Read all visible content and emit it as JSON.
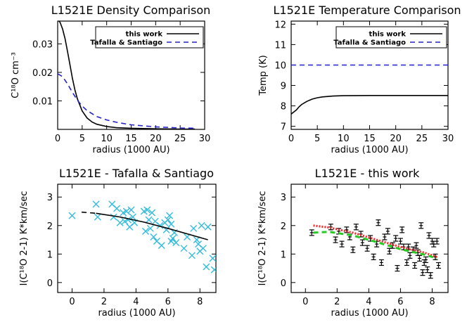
{
  "chart_data": [
    {
      "id": "p1",
      "type": "line",
      "title": "L1521E Density Comparison",
      "xlabel": "radius (1000 AU)",
      "ylabel": "C¹⁸O cm⁻³",
      "xlim": [
        0,
        30
      ],
      "ylim": [
        0,
        0.038
      ],
      "xticks": [
        0,
        5,
        10,
        15,
        20,
        25,
        30
      ],
      "yticks": [
        0.01,
        0.02,
        0.03
      ],
      "ytick_labels": [
        "0.01",
        "0.02",
        "0.03"
      ],
      "legend": "top-right",
      "series": [
        {
          "name": "this work",
          "color": "#000000",
          "dash": "solid",
          "x": [
            0,
            0.5,
            1,
            1.5,
            2,
            2.5,
            3,
            3.5,
            4,
            5,
            6,
            7,
            8,
            10,
            12,
            15,
            20,
            25,
            28
          ],
          "y": [
            0.0385,
            0.0375,
            0.0352,
            0.0318,
            0.0275,
            0.0228,
            0.018,
            0.014,
            0.0108,
            0.0065,
            0.004,
            0.0026,
            0.0018,
            0.001,
            0.0006,
            0.0004,
            0.0002,
            0.0001,
            0.0001
          ]
        },
        {
          "name": "Tafalla & Santiago",
          "color": "#2222cc",
          "dash": "dashed",
          "x": [
            0,
            1,
            2,
            3,
            4,
            5,
            6,
            8,
            10,
            12,
            15,
            20,
            25,
            28
          ],
          "y": [
            0.0195,
            0.0185,
            0.016,
            0.013,
            0.0103,
            0.0082,
            0.0066,
            0.0045,
            0.0033,
            0.0025,
            0.0016,
            0.0009,
            0.0005,
            0.0004
          ]
        }
      ]
    },
    {
      "id": "p2",
      "type": "line",
      "title": "L1521E Temperature Comparison",
      "xlabel": "radius (1000 AU)",
      "ylabel": "Temp (K)",
      "xlim": [
        0,
        30
      ],
      "ylim": [
        6.85,
        12.15
      ],
      "xticks": [
        0,
        5,
        10,
        15,
        20,
        25,
        30
      ],
      "yticks": [
        7,
        8,
        9,
        10,
        11,
        12
      ],
      "ytick_labels": [
        "7",
        "8",
        "9",
        "10",
        "11",
        "12"
      ],
      "legend": "top-right",
      "series": [
        {
          "name": "this work",
          "color": "#000000",
          "dash": "solid",
          "x": [
            0,
            0.5,
            1,
            1.5,
            2,
            3,
            4,
            5,
            6,
            8,
            10,
            15,
            20,
            25,
            30
          ],
          "y": [
            7.6,
            7.7,
            7.8,
            7.95,
            8.07,
            8.22,
            8.33,
            8.4,
            8.44,
            8.48,
            8.5,
            8.51,
            8.51,
            8.51,
            8.51
          ]
        },
        {
          "name": "Tafalla & Santiago",
          "color": "#2222cc",
          "dash": "dashed",
          "x": [
            0,
            30
          ],
          "y": [
            10,
            10
          ]
        }
      ]
    },
    {
      "id": "p3",
      "type": "scatter",
      "title": "L1521E - Tafalla & Santiago",
      "xlabel": "radius (1000 AU)",
      "ylabel": "I(C¹⁸O 2-1) K*km/sec",
      "xlim": [
        -0.9,
        9
      ],
      "ylim": [
        -0.35,
        3.45
      ],
      "xticks": [
        0,
        2,
        4,
        6,
        8
      ],
      "yticks": [
        0,
        1,
        2,
        3
      ],
      "ytick_labels": [
        "0",
        "1",
        "2",
        "3"
      ],
      "series": [
        {
          "name": "",
          "marker": "x",
          "color": "#33bbdd",
          "x": [
            0.0,
            1.5,
            1.6,
            2.5,
            2.6,
            2.8,
            3.0,
            3.2,
            3.3,
            3.4,
            3.5,
            3.6,
            3.7,
            3.8,
            3.9,
            4.5,
            4.6,
            4.7,
            4.8,
            4.9,
            5.0,
            5.1,
            5.2,
            5.3,
            5.5,
            5.6,
            5.8,
            5.9,
            6.0,
            6.1,
            6.2,
            6.2,
            6.3,
            6.4,
            6.5,
            7.0,
            7.2,
            7.5,
            7.6,
            7.8,
            7.9,
            8.0,
            8.1,
            8.2,
            8.4,
            8.5,
            8.8,
            8.9
          ],
          "y": [
            2.35,
            2.75,
            2.3,
            2.75,
            2.3,
            2.6,
            2.1,
            2.45,
            2.15,
            2.5,
            2.2,
            1.95,
            2.55,
            2.3,
            2.1,
            2.5,
            1.8,
            2.55,
            2.2,
            1.9,
            2.45,
            1.6,
            2.15,
            1.45,
            2.0,
            1.3,
            2.1,
            1.85,
            2.2,
            2.35,
            1.45,
            2.05,
            1.55,
            1.75,
            1.4,
            1.2,
            1.6,
            0.95,
            1.9,
            1.5,
            1.35,
            1.1,
            2.0,
            1.2,
            0.55,
            1.95,
            0.85,
            0.45
          ]
        },
        {
          "name": "",
          "color": "#000000",
          "dash": "dashed",
          "x": [
            0.6,
            1.5
          ],
          "y": [
            2.47,
            2.43
          ]
        },
        {
          "name": "",
          "color": "#000000",
          "dash": "solid",
          "x": [
            1.5,
            3,
            4.5,
            6,
            7.5,
            8.5
          ],
          "y": [
            2.43,
            2.3,
            2.12,
            1.9,
            1.66,
            1.5
          ]
        }
      ]
    },
    {
      "id": "p4",
      "type": "scatter",
      "title": "L1521E - this work",
      "xlabel": "radius (1000 AU)",
      "ylabel": "I(C¹⁸O 2-1) K*km/sec",
      "xlim": [
        -0.9,
        9
      ],
      "ylim": [
        -0.35,
        3.45
      ],
      "xticks": [
        0,
        2,
        4,
        6,
        8
      ],
      "yticks": [
        0,
        1,
        2,
        3
      ],
      "ytick_labels": [
        "0",
        "1",
        "2",
        "3"
      ],
      "series": [
        {
          "name": "",
          "marker": "errorbar",
          "color": "#000000",
          "x": [
            0.4,
            1.6,
            1.9,
            2.1,
            2.3,
            2.6,
            2.8,
            3.0,
            3.2,
            3.5,
            3.6,
            3.9,
            4.1,
            4.3,
            4.5,
            4.6,
            4.8,
            5.0,
            5.2,
            5.3,
            5.5,
            5.7,
            5.8,
            6.0,
            6.1,
            6.2,
            6.4,
            6.5,
            6.6,
            6.8,
            6.9,
            7.0,
            7.1,
            7.2,
            7.3,
            7.4,
            7.5,
            7.6,
            7.7,
            7.8,
            7.9,
            8.0,
            8.1,
            8.2,
            8.3,
            8.4
          ],
          "y": [
            1.75,
            1.95,
            1.5,
            1.8,
            1.35,
            1.85,
            1.6,
            1.15,
            1.95,
            1.7,
            1.4,
            1.2,
            1.55,
            0.9,
            1.35,
            2.1,
            0.7,
            1.6,
            1.8,
            1.1,
            1.3,
            1.55,
            0.5,
            1.45,
            1.85,
            1.25,
            0.7,
            1.25,
            0.95,
            1.15,
            0.6,
            1.3,
            1.05,
            0.85,
            2.0,
            0.35,
            0.7,
            0.8,
            0.45,
            1.65,
            0.25,
            1.45,
            1.35,
            0.9,
            1.45,
            0.6
          ]
        },
        {
          "name": "",
          "color": "#ff2222",
          "dash": "dotted",
          "x": [
            0.5,
            1.5,
            3,
            4.5,
            6,
            7.5,
            8.3
          ],
          "y": [
            2.0,
            1.93,
            1.75,
            1.5,
            1.25,
            1.05,
            0.9
          ]
        },
        {
          "name": "",
          "color": "#22cc22",
          "dash": "dashed",
          "x": [
            0.5,
            1.5,
            3,
            4.5,
            6,
            7.5,
            8.3
          ],
          "y": [
            1.75,
            1.78,
            1.65,
            1.42,
            1.17,
            0.98,
            0.85
          ]
        }
      ]
    }
  ]
}
